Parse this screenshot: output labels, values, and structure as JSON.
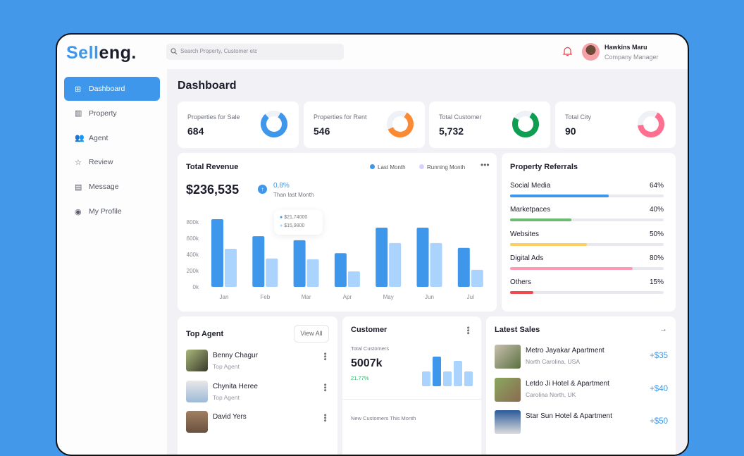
{
  "brand": {
    "part1": "Sell",
    "part2": "eng."
  },
  "search": {
    "placeholder": "Search Property, Customer etc"
  },
  "user": {
    "name": "Hawkins Maru",
    "role": "Company Manager"
  },
  "sidebar": {
    "items": [
      {
        "label": "Dashboard",
        "icon": "grid-icon",
        "active": true
      },
      {
        "label": "Property",
        "icon": "building-icon"
      },
      {
        "label": "Agent",
        "icon": "users-icon"
      },
      {
        "label": "Review",
        "icon": "star-icon"
      },
      {
        "label": "Message",
        "icon": "message-icon"
      },
      {
        "label": "My Profile",
        "icon": "profile-icon"
      }
    ]
  },
  "page_title": "Dashboard",
  "stats": [
    {
      "label": "Properties for Sale",
      "value": "684",
      "color": "#3e97ea",
      "fraction": 0.8
    },
    {
      "label": "Properties for Rent",
      "value": "546",
      "color": "#fb8a34",
      "fraction": 0.6
    },
    {
      "label": "Total Customer",
      "value": "5,732",
      "color": "#0f9d52",
      "fraction": 0.75
    },
    {
      "label": "Total City",
      "value": "90",
      "color": "#fd7090",
      "fraction": 0.65
    }
  ],
  "revenue": {
    "title": "Total Revenue",
    "amount": "$236,535",
    "change": "0,8%",
    "change_note": "Than last Month",
    "tooltip": [
      "$21,74000",
      "$15,9800"
    ]
  },
  "chart_data": {
    "type": "bar",
    "categories": [
      "Jan",
      "Feb",
      "Mar",
      "Apr",
      "May",
      "Jun",
      "Jul"
    ],
    "yticks": [
      "0k",
      "200k",
      "400k",
      "600k",
      "800k"
    ],
    "ylim": [
      0,
      800000
    ],
    "legend": "top-right",
    "series": [
      {
        "name": "Last Month",
        "color": "#3e97ea",
        "values": [
          835000,
          625000,
          575000,
          415000,
          730000,
          730000,
          480000
        ]
      },
      {
        "name": "Running Month",
        "color": "#aad4fd",
        "values": [
          470000,
          350000,
          340000,
          190000,
          540000,
          540000,
          210000
        ]
      }
    ]
  },
  "legend_colors": {
    "Last Month": "#3e97ea",
    "Running Month": "#d7d2fb"
  },
  "referrals": {
    "title": "Property Referrals",
    "items": [
      {
        "label": "Social Media",
        "pct": "64%",
        "value": 64,
        "color": "#3e97ea"
      },
      {
        "label": "Marketpaces",
        "pct": "40%",
        "value": 40,
        "color": "#6cbb72"
      },
      {
        "label": "Websites",
        "pct": "50%",
        "value": 50,
        "color": "#fbcf62"
      },
      {
        "label": "Digital Ads",
        "pct": "80%",
        "value": 80,
        "color": "#fd9ab4"
      },
      {
        "label": "Others",
        "pct": "15%",
        "value": 15,
        "color": "#ef4b4f"
      }
    ]
  },
  "agents": {
    "title": "Top Agent",
    "view_all": "View All",
    "items": [
      {
        "name": "Benny Chagur",
        "role": "Top Agent"
      },
      {
        "name": "Chynita Heree",
        "role": "Top Agent"
      },
      {
        "name": "David Yers",
        "role": ""
      }
    ]
  },
  "customer": {
    "title": "Customer",
    "total_label": "Total Customers",
    "total": "5007k",
    "growth": "21.77%",
    "new_label": "New Customers This Month",
    "mini_bars": [
      40,
      80,
      40,
      70,
      40
    ]
  },
  "sales": {
    "title": "Latest Sales",
    "items": [
      {
        "name": "Metro Jayakar Apartment",
        "location": "North Carolina, USA",
        "amount": "+$35"
      },
      {
        "name": "Letdo Ji Hotel & Apartment",
        "location": "Carolina North, UK",
        "amount": "+$40"
      },
      {
        "name": "Star Sun Hotel & Apartment",
        "location": "",
        "amount": "+$50"
      }
    ]
  }
}
